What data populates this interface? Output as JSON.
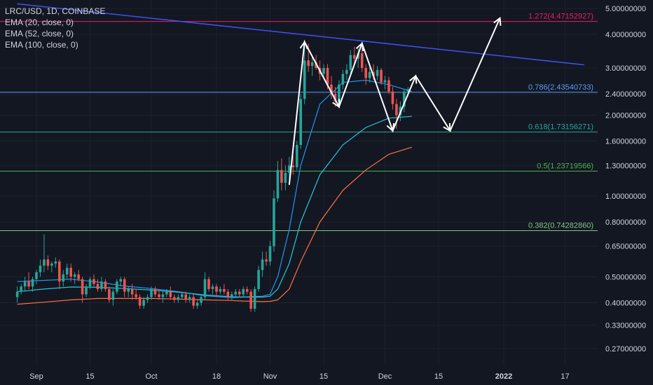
{
  "legend": {
    "symbol": "LRC/USD, 1D, COINBASE",
    "ema20": "EMA (20, close, 0)",
    "ema52": "EMA (52, close, 0)",
    "ema100": "EMA (100, close, 0)"
  },
  "colors": {
    "background": "#131722",
    "up": "#26a69a",
    "down": "#ef5350",
    "ema20": "#2196f3",
    "ema52": "#26c6da",
    "ema100": "#ff7043",
    "trendline": "#3f51f5",
    "grid": "#1e222d"
  },
  "chart_data": {
    "type": "candlestick",
    "y_scale": "log",
    "y_ticks": [
      "5.00000000",
      "4.00000000",
      "3.00000000",
      "2.40000000",
      "2.00000000",
      "1.60000000",
      "1.30000000",
      "1.00000000",
      "0.80000000",
      "0.65000000",
      "0.50000000",
      "0.40000000",
      "0.33000000",
      "0.27000000"
    ],
    "x_ticks": [
      {
        "label": "Sep",
        "date": "2021-09-01",
        "bold": false
      },
      {
        "label": "15",
        "date": "2021-09-15",
        "bold": false
      },
      {
        "label": "Oct",
        "date": "2021-10-01",
        "bold": false
      },
      {
        "label": "18",
        "date": "2021-10-18",
        "bold": false
      },
      {
        "label": "Nov",
        "date": "2021-11-01",
        "bold": false
      },
      {
        "label": "15",
        "date": "2021-11-15",
        "bold": false
      },
      {
        "label": "Dec",
        "date": "2021-12-01",
        "bold": false
      },
      {
        "label": "15",
        "date": "2021-12-15",
        "bold": false
      },
      {
        "label": "2022",
        "date": "2022-01-01",
        "bold": true
      },
      {
        "label": "17",
        "date": "2022-01-17",
        "bold": false
      }
    ],
    "fib_levels": [
      {
        "label": "1.272(4.47152927)",
        "value": 4.47152927,
        "color": "#e91e63"
      },
      {
        "label": "0.786(2.43540733)",
        "value": 2.43540733,
        "color": "#5b9cf6"
      },
      {
        "label": "0.618(1.73156271)",
        "value": 1.73156271,
        "color": "#26a69a"
      },
      {
        "label": "0.5(1.23719566)",
        "value": 1.23719566,
        "color": "#4caf50"
      },
      {
        "label": "0.382(0.74282860)",
        "value": 0.7428286,
        "color": "#81c784"
      }
    ],
    "trendline": [
      {
        "date": "2021-08-27",
        "value": 5.2
      },
      {
        "date": "2022-01-22",
        "value": 3.08
      }
    ],
    "projection": [
      {
        "date": "2021-11-06",
        "value": 1.1
      },
      {
        "date": "2021-11-10",
        "value": 3.75
      },
      {
        "date": "2021-11-19",
        "value": 2.15
      },
      {
        "date": "2021-11-25",
        "value": 3.7
      },
      {
        "date": "2021-12-03",
        "value": 1.75
      },
      {
        "date": "2021-12-09",
        "value": 2.8
      },
      {
        "date": "2021-12-18",
        "value": 1.75
      },
      {
        "date": "2021-12-31",
        "value": 4.6
      }
    ],
    "series": [
      {
        "name": "EMA (20, close, 0)",
        "values": [
          0.48,
          0.485,
          0.49,
          0.478,
          0.462,
          0.452,
          0.44,
          0.425,
          0.418,
          0.42,
          0.422,
          0.423,
          0.43,
          0.5,
          0.75,
          1.3,
          2.2,
          2.65,
          2.7,
          2.6,
          2.45
        ]
      },
      {
        "name": "EMA (52, close, 0)",
        "values": [
          0.44,
          0.45,
          0.458,
          0.457,
          0.452,
          0.446,
          0.438,
          0.428,
          0.421,
          0.42,
          0.42,
          0.42,
          0.423,
          0.45,
          0.56,
          0.8,
          1.2,
          1.55,
          1.8,
          1.95,
          1.98
        ]
      },
      {
        "name": "EMA (100, close, 0)",
        "values": [
          0.395,
          0.402,
          0.41,
          0.415,
          0.415,
          0.415,
          0.413,
          0.41,
          0.408,
          0.406,
          0.405,
          0.404,
          0.405,
          0.41,
          0.45,
          0.57,
          0.8,
          1.05,
          1.25,
          1.43,
          1.52
        ]
      }
    ],
    "ema_dates": [
      "2021-08-27",
      "2021-09-03",
      "2021-09-10",
      "2021-09-17",
      "2021-09-24",
      "2021-10-01",
      "2021-10-08",
      "2021-10-15",
      "2021-10-22",
      "2021-10-25",
      "2021-10-28",
      "2021-10-30",
      "2021-11-01",
      "2021-11-03",
      "2021-11-06",
      "2021-11-09",
      "2021-11-14",
      "2021-11-20",
      "2021-11-26",
      "2021-12-02",
      "2021-12-08"
    ],
    "candles": [
      [
        "2021-08-27",
        0.42,
        0.46,
        0.4,
        0.44
      ],
      [
        "2021-08-28",
        0.44,
        0.47,
        0.43,
        0.46
      ],
      [
        "2021-08-29",
        0.46,
        0.5,
        0.44,
        0.48
      ],
      [
        "2021-08-30",
        0.48,
        0.52,
        0.45,
        0.46
      ],
      [
        "2021-08-31",
        0.46,
        0.5,
        0.44,
        0.49
      ],
      [
        "2021-09-01",
        0.49,
        0.53,
        0.47,
        0.52
      ],
      [
        "2021-09-02",
        0.52,
        0.58,
        0.5,
        0.55
      ],
      [
        "2021-09-03",
        0.55,
        0.72,
        0.52,
        0.58
      ],
      [
        "2021-09-04",
        0.58,
        0.6,
        0.53,
        0.55
      ],
      [
        "2021-09-05",
        0.55,
        0.57,
        0.52,
        0.56
      ],
      [
        "2021-09-06",
        0.56,
        0.59,
        0.54,
        0.57
      ],
      [
        "2021-09-07",
        0.57,
        0.58,
        0.45,
        0.48
      ],
      [
        "2021-09-08",
        0.48,
        0.53,
        0.46,
        0.51
      ],
      [
        "2021-09-09",
        0.51,
        0.56,
        0.49,
        0.54
      ],
      [
        "2021-09-10",
        0.54,
        0.56,
        0.48,
        0.5
      ],
      [
        "2021-09-11",
        0.5,
        0.52,
        0.47,
        0.51
      ],
      [
        "2021-09-12",
        0.51,
        0.53,
        0.48,
        0.49
      ],
      [
        "2021-09-13",
        0.49,
        0.5,
        0.4,
        0.43
      ],
      [
        "2021-09-14",
        0.43,
        0.47,
        0.42,
        0.46
      ],
      [
        "2021-09-15",
        0.46,
        0.5,
        0.45,
        0.49
      ],
      [
        "2021-09-16",
        0.49,
        0.51,
        0.46,
        0.47
      ],
      [
        "2021-09-17",
        0.47,
        0.49,
        0.44,
        0.45
      ],
      [
        "2021-09-18",
        0.45,
        0.5,
        0.44,
        0.48
      ],
      [
        "2021-09-19",
        0.48,
        0.49,
        0.44,
        0.45
      ],
      [
        "2021-09-20",
        0.45,
        0.46,
        0.4,
        0.41
      ],
      [
        "2021-09-21",
        0.41,
        0.45,
        0.39,
        0.44
      ],
      [
        "2021-09-22",
        0.44,
        0.49,
        0.43,
        0.48
      ],
      [
        "2021-09-23",
        0.48,
        0.5,
        0.46,
        0.49
      ],
      [
        "2021-09-24",
        0.49,
        0.5,
        0.42,
        0.44
      ],
      [
        "2021-09-25",
        0.44,
        0.46,
        0.42,
        0.45
      ],
      [
        "2021-09-26",
        0.45,
        0.47,
        0.41,
        0.43
      ],
      [
        "2021-09-27",
        0.43,
        0.45,
        0.41,
        0.42
      ],
      [
        "2021-09-28",
        0.42,
        0.43,
        0.38,
        0.39
      ],
      [
        "2021-09-29",
        0.39,
        0.42,
        0.38,
        0.41
      ],
      [
        "2021-09-30",
        0.41,
        0.43,
        0.4,
        0.42
      ],
      [
        "2021-10-01",
        0.42,
        0.46,
        0.41,
        0.45
      ],
      [
        "2021-10-02",
        0.45,
        0.46,
        0.42,
        0.43
      ],
      [
        "2021-10-03",
        0.43,
        0.45,
        0.41,
        0.42
      ],
      [
        "2021-10-04",
        0.42,
        0.44,
        0.4,
        0.43
      ],
      [
        "2021-10-05",
        0.43,
        0.45,
        0.42,
        0.44
      ],
      [
        "2021-10-06",
        0.44,
        0.46,
        0.41,
        0.42
      ],
      [
        "2021-10-07",
        0.42,
        0.43,
        0.4,
        0.41
      ],
      [
        "2021-10-08",
        0.41,
        0.43,
        0.4,
        0.42
      ],
      [
        "2021-10-09",
        0.42,
        0.44,
        0.41,
        0.43
      ],
      [
        "2021-10-10",
        0.43,
        0.44,
        0.4,
        0.41
      ],
      [
        "2021-10-11",
        0.41,
        0.43,
        0.4,
        0.42
      ],
      [
        "2021-10-12",
        0.42,
        0.43,
        0.38,
        0.39
      ],
      [
        "2021-10-13",
        0.39,
        0.41,
        0.38,
        0.4
      ],
      [
        "2021-10-14",
        0.4,
        0.43,
        0.39,
        0.42
      ],
      [
        "2021-10-15",
        0.42,
        0.52,
        0.41,
        0.49
      ],
      [
        "2021-10-16",
        0.49,
        0.5,
        0.44,
        0.45
      ],
      [
        "2021-10-17",
        0.45,
        0.47,
        0.43,
        0.46
      ],
      [
        "2021-10-18",
        0.46,
        0.47,
        0.42,
        0.44
      ],
      [
        "2021-10-19",
        0.44,
        0.46,
        0.43,
        0.45
      ],
      [
        "2021-10-20",
        0.45,
        0.47,
        0.43,
        0.44
      ],
      [
        "2021-10-21",
        0.44,
        0.45,
        0.41,
        0.42
      ],
      [
        "2021-10-22",
        0.42,
        0.44,
        0.41,
        0.43
      ],
      [
        "2021-10-23",
        0.43,
        0.45,
        0.42,
        0.44
      ],
      [
        "2021-10-24",
        0.44,
        0.45,
        0.42,
        0.43
      ],
      [
        "2021-10-25",
        0.43,
        0.46,
        0.42,
        0.45
      ],
      [
        "2021-10-26",
        0.45,
        0.46,
        0.43,
        0.44
      ],
      [
        "2021-10-27",
        0.44,
        0.45,
        0.37,
        0.38
      ],
      [
        "2021-10-28",
        0.38,
        0.46,
        0.37,
        0.45
      ],
      [
        "2021-10-29",
        0.45,
        0.55,
        0.44,
        0.53
      ],
      [
        "2021-10-30",
        0.53,
        0.62,
        0.5,
        0.58
      ],
      [
        "2021-10-31",
        0.58,
        0.62,
        0.55,
        0.57
      ],
      [
        "2021-11-01",
        0.57,
        0.68,
        0.55,
        0.65
      ],
      [
        "2021-11-02",
        0.65,
        1.05,
        0.62,
        0.98
      ],
      [
        "2021-11-03",
        0.98,
        1.35,
        0.95,
        1.25
      ],
      [
        "2021-11-04",
        1.25,
        1.38,
        1.05,
        1.12
      ],
      [
        "2021-11-05",
        1.12,
        1.3,
        1.05,
        1.22
      ],
      [
        "2021-11-06",
        1.22,
        1.4,
        1.15,
        1.3
      ],
      [
        "2021-11-07",
        1.3,
        1.42,
        1.2,
        1.28
      ],
      [
        "2021-11-08",
        1.28,
        1.6,
        1.25,
        1.55
      ],
      [
        "2021-11-09",
        1.55,
        2.4,
        1.5,
        2.3
      ],
      [
        "2021-11-10",
        2.3,
        3.6,
        2.2,
        3.2
      ],
      [
        "2021-11-11",
        3.2,
        3.7,
        2.9,
        3.05
      ],
      [
        "2021-11-12",
        3.05,
        3.3,
        2.8,
        3.15
      ],
      [
        "2021-11-13",
        3.15,
        3.35,
        2.95,
        3.0
      ],
      [
        "2021-11-14",
        3.0,
        3.2,
        2.7,
        2.85
      ],
      [
        "2021-11-15",
        2.85,
        3.1,
        2.75,
        3.0
      ],
      [
        "2021-11-16",
        3.0,
        3.1,
        2.5,
        2.6
      ],
      [
        "2021-11-17",
        2.6,
        2.8,
        2.3,
        2.4
      ],
      [
        "2021-11-18",
        2.4,
        2.55,
        2.15,
        2.25
      ],
      [
        "2021-11-19",
        2.25,
        2.7,
        2.2,
        2.6
      ],
      [
        "2021-11-20",
        2.6,
        2.95,
        2.5,
        2.85
      ],
      [
        "2021-11-21",
        2.85,
        3.1,
        2.7,
        2.95
      ],
      [
        "2021-11-22",
        2.95,
        3.5,
        2.85,
        3.35
      ],
      [
        "2021-11-23",
        3.35,
        3.6,
        3.1,
        3.25
      ],
      [
        "2021-11-24",
        3.25,
        3.55,
        3.0,
        3.4
      ],
      [
        "2021-11-25",
        3.4,
        3.55,
        2.9,
        3.0
      ],
      [
        "2021-11-26",
        3.0,
        3.1,
        2.6,
        2.75
      ],
      [
        "2021-11-27",
        2.75,
        3.05,
        2.65,
        2.9
      ],
      [
        "2021-11-28",
        2.9,
        3.1,
        2.7,
        2.8
      ],
      [
        "2021-11-29",
        2.8,
        3.05,
        2.7,
        2.95
      ],
      [
        "2021-11-30",
        2.95,
        3.0,
        2.6,
        2.65
      ],
      [
        "2021-12-01",
        2.65,
        2.8,
        2.5,
        2.7
      ],
      [
        "2021-12-02",
        2.7,
        2.78,
        2.4,
        2.45
      ],
      [
        "2021-12-03",
        2.45,
        2.55,
        2.1,
        2.2
      ],
      [
        "2021-12-04",
        2.2,
        2.3,
        1.78,
        2.0
      ],
      [
        "2021-12-05",
        2.0,
        2.25,
        1.9,
        2.15
      ],
      [
        "2021-12-06",
        2.15,
        2.5,
        2.05,
        2.45
      ],
      [
        "2021-12-07",
        2.45,
        2.55,
        2.35,
        2.5
      ]
    ]
  }
}
